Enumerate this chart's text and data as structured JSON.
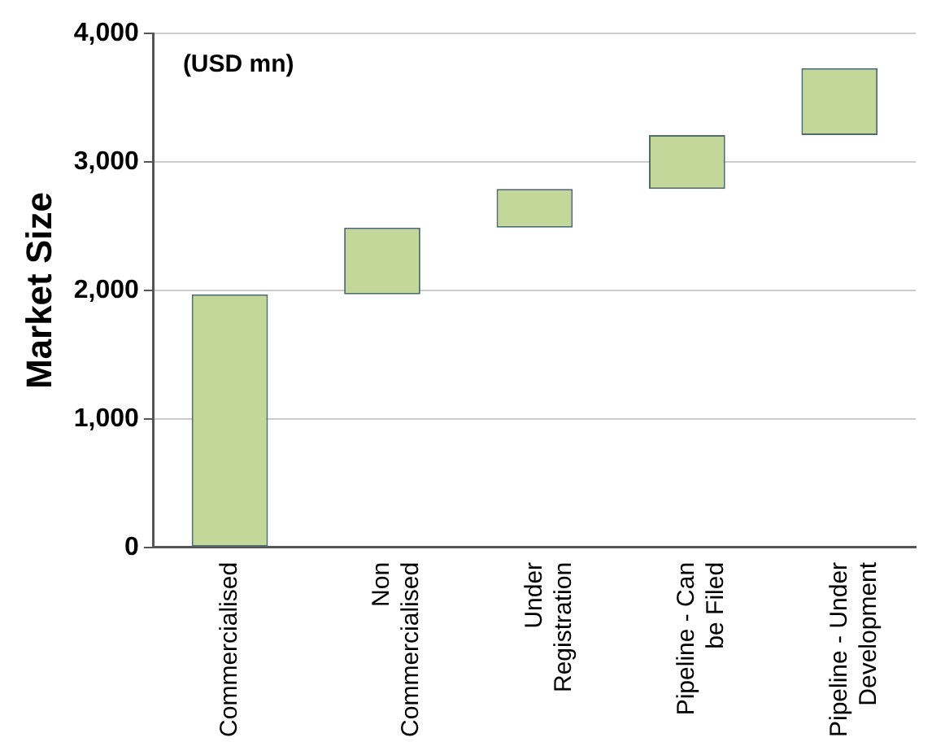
{
  "chart_data": {
    "type": "bar",
    "ylabel": "Market Size",
    "annotations": [
      "(USD mn)"
    ],
    "categories": [
      "Commercialised",
      "Non Commercialised",
      "Under Registration",
      "Pipeline - Can be Filed",
      "Pipeline - Under Development"
    ],
    "values": [
      1970,
      520,
      300,
      420,
      520
    ],
    "base": [
      0,
      1970,
      2490,
      2790,
      3210
    ],
    "color": "#c4d79b",
    "ylim": [
      0,
      4000
    ],
    "yticks": [
      {
        "value": 0,
        "label": "0"
      },
      {
        "value": 1000,
        "label": "1,000"
      },
      {
        "value": 2000,
        "label": "2,000"
      },
      {
        "value": 3000,
        "label": "3,000"
      },
      {
        "value": 4000,
        "label": "4,000"
      }
    ],
    "grid": "y"
  }
}
